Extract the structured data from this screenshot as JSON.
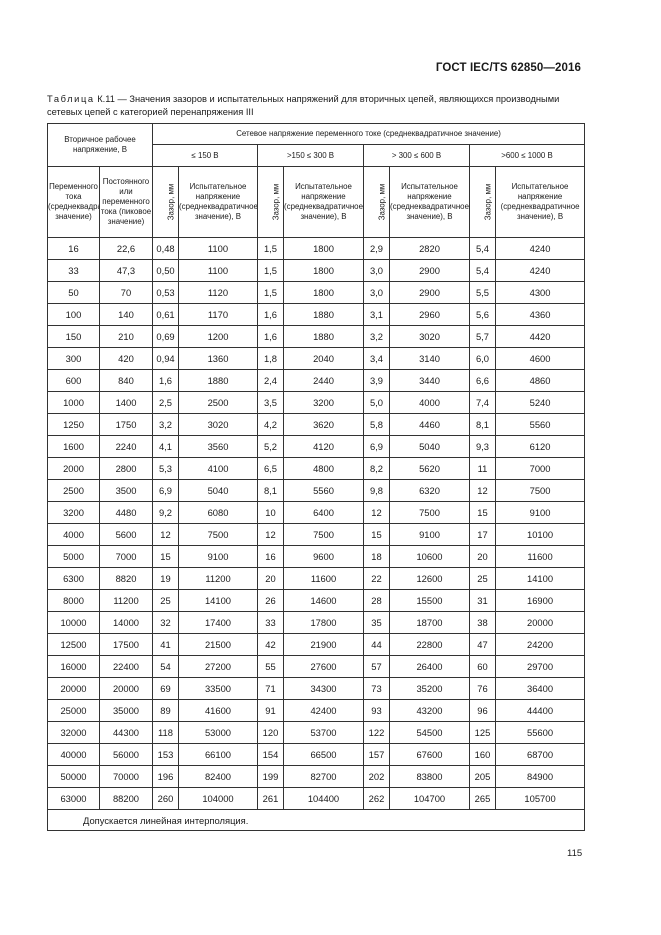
{
  "header": {
    "standard_id": "ГОСТ IEC/TS 62850—2016"
  },
  "caption": {
    "lead": "Таблица",
    "text": " К.11 — Значения зазоров и испытательных напряжений для вторичных цепей, являющихся производными сетевых цепей с категорией перенапряжения III"
  },
  "table": {
    "secondary_voltage": "Вторичное рабочее напряжение, В",
    "mains_voltage": "Сетевое напряжение переменного токе (среднеквадратичное значение)",
    "ranges": [
      "≤ 150 В",
      ">150 ≤ 300 В",
      "> 300 ≤ 600 В",
      ">600 ≤ 1000 В"
    ],
    "col_ac": "Переменного тока (среднеквадратичное значение)",
    "col_dc": "Постоянного или переменного тока (пиковое значение)",
    "col_clearance": "Зазор, мм",
    "col_test_voltage": "Испытательное напряжение (среднеквадратичное значение), В",
    "rows": [
      [
        "16",
        "22,6",
        "0,48",
        "1100",
        "1,5",
        "1800",
        "2,9",
        "2820",
        "5,4",
        "4240"
      ],
      [
        "33",
        "47,3",
        "0,50",
        "1100",
        "1,5",
        "1800",
        "3,0",
        "2900",
        "5,4",
        "4240"
      ],
      [
        "50",
        "70",
        "0,53",
        "1120",
        "1,5",
        "1800",
        "3,0",
        "2900",
        "5,5",
        "4300"
      ],
      [
        "100",
        "140",
        "0,61",
        "1170",
        "1,6",
        "1880",
        "3,1",
        "2960",
        "5,6",
        "4360"
      ],
      [
        "150",
        "210",
        "0,69",
        "1200",
        "1,6",
        "1880",
        "3,2",
        "3020",
        "5,7",
        "4420"
      ],
      [
        "300",
        "420",
        "0,94",
        "1360",
        "1,8",
        "2040",
        "3,4",
        "3140",
        "6,0",
        "4600"
      ],
      [
        "600",
        "840",
        "1,6",
        "1880",
        "2,4",
        "2440",
        "3,9",
        "3440",
        "6,6",
        "4860"
      ],
      [
        "1000",
        "1400",
        "2,5",
        "2500",
        "3,5",
        "3200",
        "5,0",
        "4000",
        "7,4",
        "5240"
      ],
      [
        "1250",
        "1750",
        "3,2",
        "3020",
        "4,2",
        "3620",
        "5,8",
        "4460",
        "8,1",
        "5560"
      ],
      [
        "1600",
        "2240",
        "4,1",
        "3560",
        "5,2",
        "4120",
        "6,9",
        "5040",
        "9,3",
        "6120"
      ],
      [
        "2000",
        "2800",
        "5,3",
        "4100",
        "6,5",
        "4800",
        "8,2",
        "5620",
        "11",
        "7000"
      ],
      [
        "2500",
        "3500",
        "6,9",
        "5040",
        "8,1",
        "5560",
        "9,8",
        "6320",
        "12",
        "7500"
      ],
      [
        "3200",
        "4480",
        "9,2",
        "6080",
        "10",
        "6400",
        "12",
        "7500",
        "15",
        "9100"
      ],
      [
        "4000",
        "5600",
        "12",
        "7500",
        "12",
        "7500",
        "15",
        "9100",
        "17",
        "10100"
      ],
      [
        "5000",
        "7000",
        "15",
        "9100",
        "16",
        "9600",
        "18",
        "10600",
        "20",
        "11600"
      ],
      [
        "6300",
        "8820",
        "19",
        "11200",
        "20",
        "11600",
        "22",
        "12600",
        "25",
        "14100"
      ],
      [
        "8000",
        "11200",
        "25",
        "14100",
        "26",
        "14600",
        "28",
        "15500",
        "31",
        "16900"
      ],
      [
        "10000",
        "14000",
        "32",
        "17400",
        "33",
        "17800",
        "35",
        "18700",
        "38",
        "20000"
      ],
      [
        "12500",
        "17500",
        "41",
        "21500",
        "42",
        "21900",
        "44",
        "22800",
        "47",
        "24200"
      ],
      [
        "16000",
        "22400",
        "54",
        "27200",
        "55",
        "27600",
        "57",
        "26400",
        "60",
        "29700"
      ],
      [
        "20000",
        "20000",
        "69",
        "33500",
        "71",
        "34300",
        "73",
        "35200",
        "76",
        "36400"
      ],
      [
        "25000",
        "35000",
        "89",
        "41600",
        "91",
        "42400",
        "93",
        "43200",
        "96",
        "44400"
      ],
      [
        "32000",
        "44300",
        "118",
        "53000",
        "120",
        "53700",
        "122",
        "54500",
        "125",
        "55600"
      ],
      [
        "40000",
        "56000",
        "153",
        "66100",
        "154",
        "66500",
        "157",
        "67600",
        "160",
        "68700"
      ],
      [
        "50000",
        "70000",
        "196",
        "82400",
        "199",
        "82700",
        "202",
        "83800",
        "205",
        "84900"
      ],
      [
        "63000",
        "88200",
        "260",
        "104000",
        "261",
        "104400",
        "262",
        "104700",
        "265",
        "105700"
      ]
    ],
    "note": "Допускается линейная интерполяция."
  },
  "footer": {
    "page_number": "115"
  }
}
